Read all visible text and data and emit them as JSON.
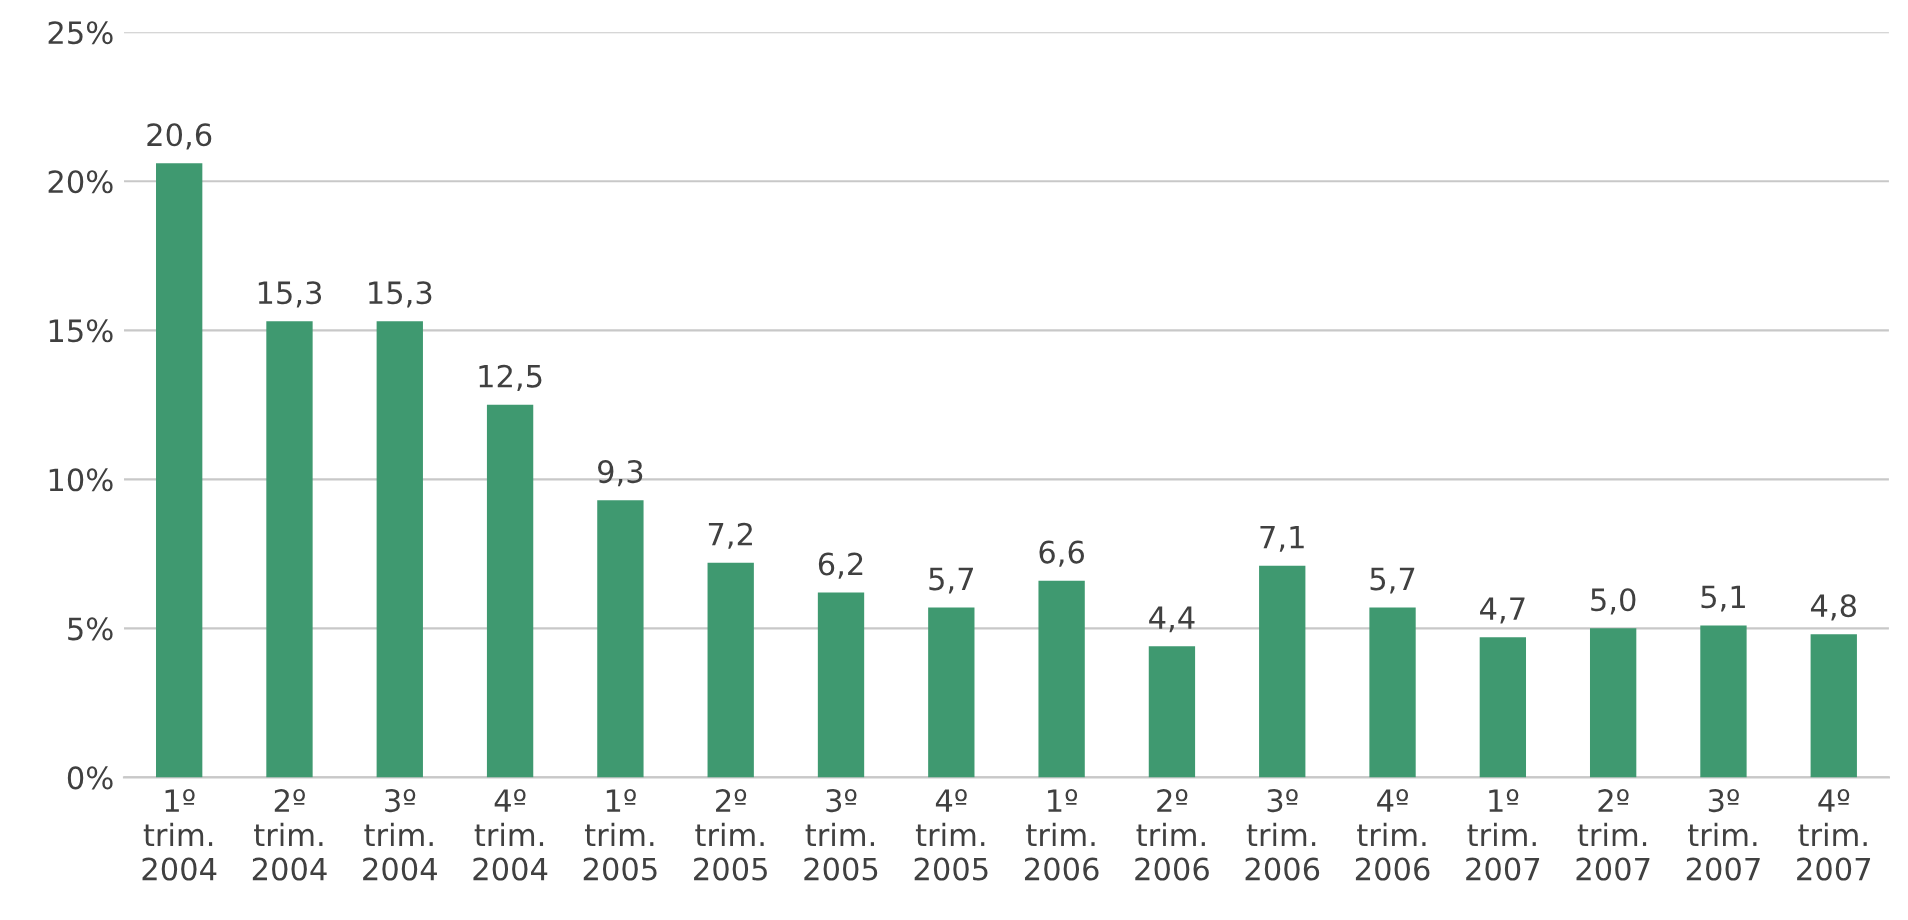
{
  "chart_data": {
    "type": "bar",
    "categories": [
      "1º\ntrim.\n2004",
      "2º\ntrim.\n2004",
      "3º\ntrim.\n2004",
      "4º\ntrim.\n2004",
      "1º\ntrim.\n2005",
      "2º\ntrim.\n2005",
      "3º\ntrim.\n2005",
      "4º\ntrim.\n2005",
      "1º\ntrim.\n2006",
      "2º\ntrim.\n2006",
      "3º\ntrim.\n2006",
      "4º\ntrim.\n2006",
      "1º\ntrim.\n2007",
      "2º\ntrim.\n2007",
      "3º\ntrim.\n2007",
      "4º\ntrim.\n2007"
    ],
    "values": [
      20.6,
      15.3,
      15.3,
      12.5,
      9.3,
      7.2,
      6.2,
      5.7,
      6.6,
      4.4,
      7.1,
      5.7,
      4.7,
      5.0,
      5.1,
      4.8
    ],
    "value_labels": [
      "20,6",
      "15,3",
      "15,3",
      "12,5",
      "9,3",
      "7,2",
      "6,2",
      "5,7",
      "6,6",
      "4,4",
      "7,1",
      "5,7",
      "4,7",
      "5,0",
      "5,1",
      "4,8"
    ],
    "color": "#3f9970",
    "ylim": [
      0,
      25
    ],
    "yticks": [
      {
        "value": 0,
        "label": "0%"
      },
      {
        "value": 5,
        "label": "5%"
      },
      {
        "value": 10,
        "label": "10%"
      },
      {
        "value": 15,
        "label": "15%"
      },
      {
        "value": 20,
        "label": "20%"
      },
      {
        "value": 25,
        "label": "25%"
      }
    ],
    "grid": "y",
    "legend": false
  }
}
